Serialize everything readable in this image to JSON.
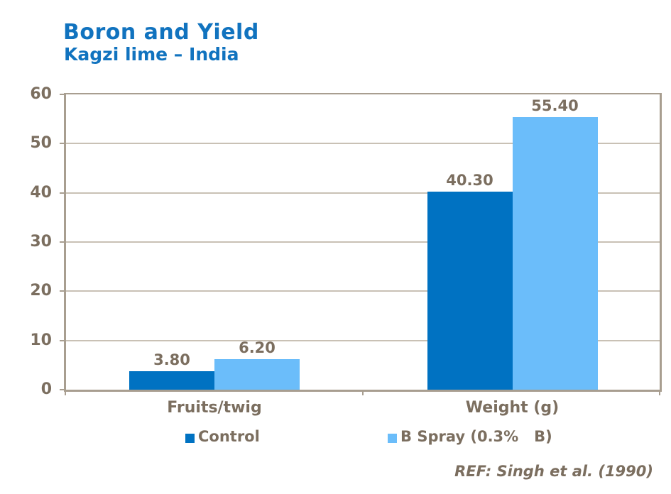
{
  "header": {
    "title": "Boron and Yield",
    "subtitle": "Kagzi lime – India"
  },
  "footer": {
    "reference": "REF: Singh et al. (1990)"
  },
  "colors": {
    "title_blue": "#1173BF",
    "control_bar": "#0072C2",
    "bspray_bar": "#6BBDFA",
    "label_brown": "#7B6E5F",
    "gridline_gray": "#C9C1B5",
    "axis_gray": "#A89E90",
    "background": "#FFFFFF"
  },
  "chart_data": {
    "type": "bar",
    "categories": [
      "Fruits/twig",
      "Weight (g)"
    ],
    "series": [
      {
        "name": "Control",
        "color": "#0072C2",
        "values": [
          3.8,
          40.3
        ],
        "value_labels": [
          "3.80",
          "40.30"
        ]
      },
      {
        "name": "B Spray (0.3% B)",
        "color": "#6BBDFA",
        "values": [
          6.2,
          55.4
        ],
        "value_labels": [
          "6.20",
          "55.40"
        ]
      }
    ],
    "legend_labels": [
      "Control",
      "B Spray (0.3%   B)"
    ],
    "xlabel": "",
    "ylabel": "",
    "ylim": [
      0,
      60
    ],
    "ytick_step": 10,
    "yticks": [
      0,
      10,
      20,
      30,
      40,
      50,
      60
    ],
    "grid": true,
    "legend_position": "bottom",
    "data_labels": true
  }
}
